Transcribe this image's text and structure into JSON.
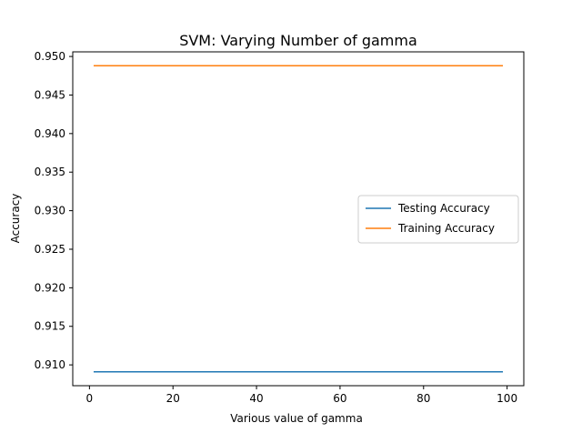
{
  "chart_data": {
    "type": "line",
    "title": "SVM: Varying Number of gamma",
    "xlabel": "Various value of gamma",
    "ylabel": "Accuracy",
    "xlim": [
      -4,
      104
    ],
    "ylim": [
      0.9073,
      0.9506
    ],
    "x_ticks": [
      0,
      20,
      40,
      60,
      80,
      100
    ],
    "x_tick_labels": [
      "0",
      "20",
      "40",
      "60",
      "80",
      "100"
    ],
    "y_ticks": [
      0.91,
      0.915,
      0.92,
      0.925,
      0.93,
      0.935,
      0.94,
      0.945,
      0.95
    ],
    "y_tick_labels": [
      "0.910",
      "0.915",
      "0.920",
      "0.925",
      "0.930",
      "0.935",
      "0.940",
      "0.945",
      "0.950"
    ],
    "grid": false,
    "legend_position": "center-right",
    "series": [
      {
        "name": "Testing Accuracy",
        "color": "#1f77b4",
        "x": [
          1,
          99
        ],
        "y": [
          0.9091,
          0.9091
        ]
      },
      {
        "name": "Training Accuracy",
        "color": "#ff7f0e",
        "x": [
          1,
          99
        ],
        "y": [
          0.9488,
          0.9488
        ]
      }
    ]
  }
}
